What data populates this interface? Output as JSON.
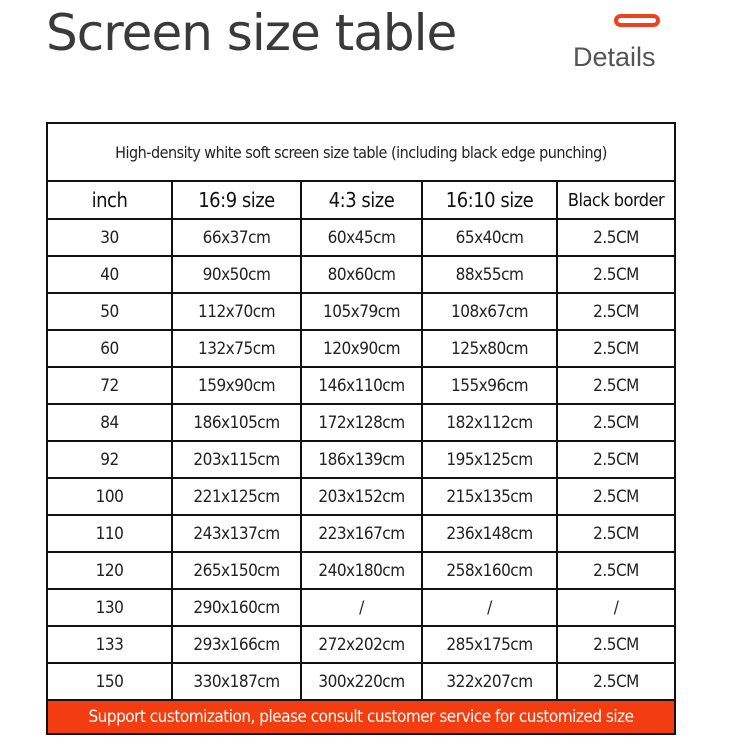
{
  "header": {
    "title": "Screen size table",
    "details_label": "Details"
  },
  "table": {
    "caption": "High-density white soft screen size table (including black edge punching)",
    "columns": [
      "inch",
      "16:9 size",
      "4:3 size",
      "16:10 size",
      "Black border"
    ],
    "rows": [
      [
        "30",
        "66x37cm",
        "60x45cm",
        "65x40cm",
        "2.5CM"
      ],
      [
        "40",
        "90x50cm",
        "80x60cm",
        "88x55cm",
        "2.5CM"
      ],
      [
        "50",
        "112x70cm",
        "105x79cm",
        "108x67cm",
        "2.5CM"
      ],
      [
        "60",
        "132x75cm",
        "120x90cm",
        "125x80cm",
        "2.5CM"
      ],
      [
        "72",
        "159x90cm",
        "146x110cm",
        "155x96cm",
        "2.5CM"
      ],
      [
        "84",
        "186x105cm",
        "172x128cm",
        "182x112cm",
        "2.5CM"
      ],
      [
        "92",
        "203x115cm",
        "186x139cm",
        "195x125cm",
        "2.5CM"
      ],
      [
        "100",
        "221x125cm",
        "203x152cm",
        "215x135cm",
        "2.5CM"
      ],
      [
        "110",
        "243x137cm",
        "223x167cm",
        "236x148cm",
        "2.5CM"
      ],
      [
        "120",
        "265x150cm",
        "240x180cm",
        "258x160cm",
        "2.5CM"
      ],
      [
        "130",
        "290x160cm",
        "/",
        "/",
        "/"
      ],
      [
        "133",
        "293x166cm",
        "272x202cm",
        "285x175cm",
        "2.5CM"
      ],
      [
        "150",
        "330x187cm",
        "300x220cm",
        "322x207cm",
        "2.5CM"
      ]
    ],
    "footer": "Support customization, please consult customer service for customized size"
  },
  "colors": {
    "accent": "#f33d10",
    "text": "#222222"
  }
}
